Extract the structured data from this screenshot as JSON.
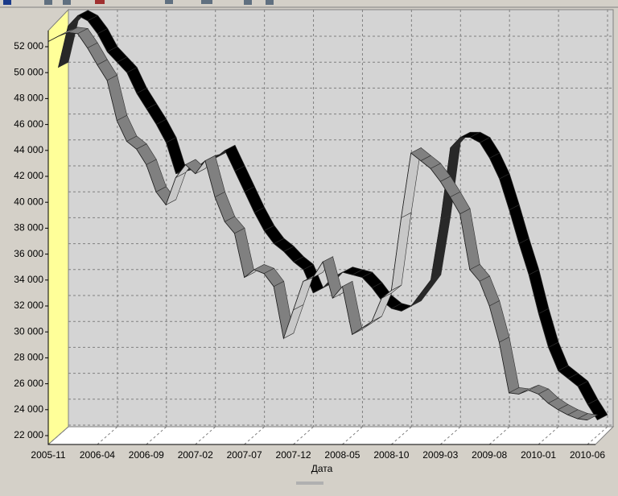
{
  "chart_data": {
    "type": "ribbon3d",
    "x_label": "Дата",
    "categories": [
      "2005-11",
      null,
      null,
      null,
      null,
      "2006-04",
      null,
      null,
      null,
      null,
      "2006-09",
      null,
      null,
      null,
      null,
      "2007-02",
      null,
      null,
      null,
      null,
      "2007-07",
      null,
      null,
      null,
      null,
      "2007-12",
      null,
      null,
      null,
      null,
      "2008-05",
      null,
      null,
      null,
      null,
      "2008-10",
      null,
      null,
      null,
      null,
      "2009-03",
      null,
      null,
      null,
      null,
      "2009-08",
      null,
      null,
      null,
      null,
      "2010-01",
      null,
      null,
      null,
      null,
      "2010-06"
    ],
    "series": [
      {
        "color": "#000000",
        "values": [
          50000,
          53200,
          54000,
          53600,
          52600,
          51200,
          50400,
          49600,
          48000,
          46800,
          45600,
          44200,
          41800,
          42000,
          42200,
          42800,
          43000,
          43600,
          42000,
          40400,
          38800,
          37400,
          36400,
          35800,
          35000,
          34400,
          32600,
          33000,
          33800,
          34200,
          34000,
          33800,
          33000,
          32000,
          31400,
          31200,
          31600,
          32600,
          33600,
          38200,
          43800,
          44600,
          44600,
          44200,
          43000,
          41400,
          39000,
          36400,
          34000,
          31000,
          28400,
          26600,
          26000,
          25400,
          24000,
          22800
        ]
      },
      {
        "color": "#808080",
        "values": [
          52400,
          52800,
          53100,
          53000,
          51900,
          50600,
          49400,
          46300,
          44700,
          44100,
          42900,
          40800,
          39800,
          41900,
          42900,
          42200,
          43200,
          40400,
          38500,
          37600,
          34200,
          34800,
          34500,
          33500,
          29500,
          31700,
          33900,
          34200,
          35400,
          32600,
          33500,
          29800,
          30300,
          30800,
          32600,
          33200,
          38800,
          43800,
          43200,
          42600,
          41600,
          40400,
          39100,
          34800,
          33900,
          32000,
          29200,
          25300,
          25200,
          25500,
          25200,
          24500,
          24000,
          23600,
          23300,
          23200
        ]
      }
    ],
    "ylim": [
      22000,
      52000
    ],
    "yticks": [
      {
        "value": 22000,
        "label": "22 000"
      },
      {
        "value": 24000,
        "label": "24 000"
      },
      {
        "value": 26000,
        "label": "26 000"
      },
      {
        "value": 28000,
        "label": "28 000"
      },
      {
        "value": 30000,
        "label": "30 000"
      },
      {
        "value": 32000,
        "label": "32 000"
      },
      {
        "value": 34000,
        "label": "34 000"
      },
      {
        "value": 36000,
        "label": "36 000"
      },
      {
        "value": 38000,
        "label": "38 000"
      },
      {
        "value": 40000,
        "label": "40 000"
      },
      {
        "value": 42000,
        "label": "42 000"
      },
      {
        "value": 44000,
        "label": "44 000"
      },
      {
        "value": 46000,
        "label": "46 000"
      },
      {
        "value": 48000,
        "label": "48 000"
      },
      {
        "value": 50000,
        "label": "50 000"
      },
      {
        "value": 52000,
        "label": "52 000"
      }
    ],
    "grid": true
  }
}
